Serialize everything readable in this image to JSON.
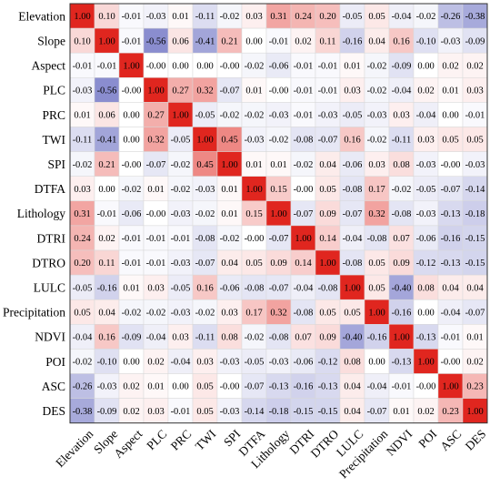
{
  "chart_data": {
    "type": "heatmap",
    "title": "",
    "xlabel": "",
    "ylabel": "",
    "grid": true,
    "colorscale": {
      "negative": "#4a4fb5",
      "zero": "#ffffff",
      "positive": "#e0261f",
      "range": [
        -1,
        1
      ]
    },
    "labels": [
      "Elevation",
      "Slope",
      "Aspect",
      "PLC",
      "PRC",
      "TWI",
      "SPI",
      "DTFA",
      "Lithology",
      "DTRI",
      "DTRO",
      "LULC",
      "Precipitation",
      "NDVI",
      "POI",
      "ASC",
      "DES"
    ],
    "matrix": [
      [
        "1.00",
        "0.10",
        "-0.01",
        "-0.03",
        "0.01",
        "-0.11",
        "-0.02",
        "0.03",
        "0.31",
        "0.24",
        "0.20",
        "-0.05",
        "0.05",
        "-0.04",
        "-0.02",
        "-0.26",
        "-0.38"
      ],
      [
        "0.10",
        "1.00",
        "-0.01",
        "-0.56",
        "0.06",
        "-0.41",
        "0.21",
        "0.00",
        "-0.01",
        "0.02",
        "0.11",
        "-0.16",
        "0.04",
        "0.16",
        "-0.10",
        "-0.03",
        "-0.09"
      ],
      [
        "-0.01",
        "-0.01",
        "1.00",
        "-0.00",
        "0.00",
        "0.00",
        "-0.00",
        "-0.02",
        "-0.06",
        "-0.01",
        "-0.01",
        "0.01",
        "-0.02",
        "-0.09",
        "0.00",
        "0.02",
        "0.02"
      ],
      [
        "-0.03",
        "-0.56",
        "-0.00",
        "1.00",
        "0.27",
        "0.32",
        "-0.07",
        "0.01",
        "-0.00",
        "-0.01",
        "-0.01",
        "0.03",
        "-0.02",
        "-0.04",
        "0.02",
        "0.01",
        "0.03"
      ],
      [
        "0.01",
        "0.06",
        "0.00",
        "0.27",
        "1.00",
        "-0.05",
        "-0.02",
        "-0.02",
        "-0.03",
        "-0.01",
        "-0.03",
        "-0.05",
        "-0.03",
        "0.03",
        "-0.04",
        "0.00",
        "-0.01"
      ],
      [
        "-0.11",
        "-0.41",
        "0.00",
        "0.32",
        "-0.05",
        "1.00",
        "0.45",
        "-0.03",
        "-0.02",
        "-0.08",
        "-0.07",
        "0.16",
        "-0.02",
        "-0.11",
        "0.03",
        "0.05",
        "0.05"
      ],
      [
        "-0.02",
        "0.21",
        "-0.00",
        "-0.07",
        "-0.02",
        "0.45",
        "1.00",
        "0.01",
        "0.01",
        "-0.02",
        "0.04",
        "-0.06",
        "0.03",
        "0.08",
        "-0.03",
        "-0.00",
        "-0.03"
      ],
      [
        "0.03",
        "0.00",
        "-0.02",
        "0.01",
        "-0.02",
        "-0.03",
        "0.01",
        "1.00",
        "0.15",
        "-0.00",
        "0.05",
        "-0.08",
        "0.17",
        "-0.02",
        "-0.05",
        "-0.07",
        "-0.14"
      ],
      [
        "0.31",
        "-0.01",
        "-0.06",
        "-0.00",
        "-0.03",
        "-0.02",
        "0.01",
        "0.15",
        "1.00",
        "-0.07",
        "0.09",
        "-0.07",
        "0.32",
        "-0.08",
        "-0.03",
        "-0.13",
        "-0.18"
      ],
      [
        "0.24",
        "0.02",
        "-0.01",
        "-0.01",
        "-0.01",
        "-0.08",
        "-0.02",
        "-0.00",
        "-0.07",
        "1.00",
        "0.14",
        "-0.04",
        "-0.08",
        "0.07",
        "-0.06",
        "-0.16",
        "-0.15"
      ],
      [
        "0.20",
        "0.11",
        "-0.01",
        "-0.01",
        "-0.03",
        "-0.07",
        "0.04",
        "0.05",
        "0.09",
        "0.14",
        "1.00",
        "-0.08",
        "0.05",
        "0.09",
        "-0.12",
        "-0.13",
        "-0.15"
      ],
      [
        "-0.05",
        "-0.16",
        "0.01",
        "0.03",
        "-0.05",
        "0.16",
        "-0.06",
        "-0.08",
        "-0.07",
        "-0.04",
        "-0.08",
        "1.00",
        "0.05",
        "-0.40",
        "0.08",
        "0.04",
        "0.04"
      ],
      [
        "0.05",
        "0.04",
        "-0.02",
        "-0.02",
        "-0.03",
        "-0.02",
        "0.03",
        "0.17",
        "0.32",
        "-0.08",
        "0.05",
        "0.05",
        "1.00",
        "-0.16",
        "0.00",
        "-0.04",
        "-0.07"
      ],
      [
        "-0.04",
        "0.16",
        "-0.09",
        "-0.04",
        "0.03",
        "-0.11",
        "0.08",
        "-0.02",
        "-0.08",
        "0.07",
        "0.09",
        "-0.40",
        "-0.16",
        "1.00",
        "-0.13",
        "-0.01",
        "0.01"
      ],
      [
        "-0.02",
        "-0.10",
        "0.00",
        "0.02",
        "-0.04",
        "0.03",
        "-0.03",
        "-0.05",
        "-0.03",
        "-0.06",
        "-0.12",
        "0.08",
        "0.00",
        "-0.13",
        "1.00",
        "-0.00",
        "0.02"
      ],
      [
        "-0.26",
        "-0.03",
        "0.02",
        "0.01",
        "0.00",
        "0.05",
        "-0.00",
        "-0.07",
        "-0.13",
        "-0.16",
        "-0.13",
        "0.04",
        "-0.04",
        "-0.01",
        "-0.00",
        "1.00",
        "0.23"
      ],
      [
        "-0.38",
        "-0.09",
        "0.02",
        "0.03",
        "-0.01",
        "0.05",
        "-0.03",
        "-0.14",
        "-0.18",
        "-0.15",
        "-0.15",
        "0.04",
        "-0.07",
        "0.01",
        "0.02",
        "0.23",
        "1.00"
      ]
    ]
  }
}
